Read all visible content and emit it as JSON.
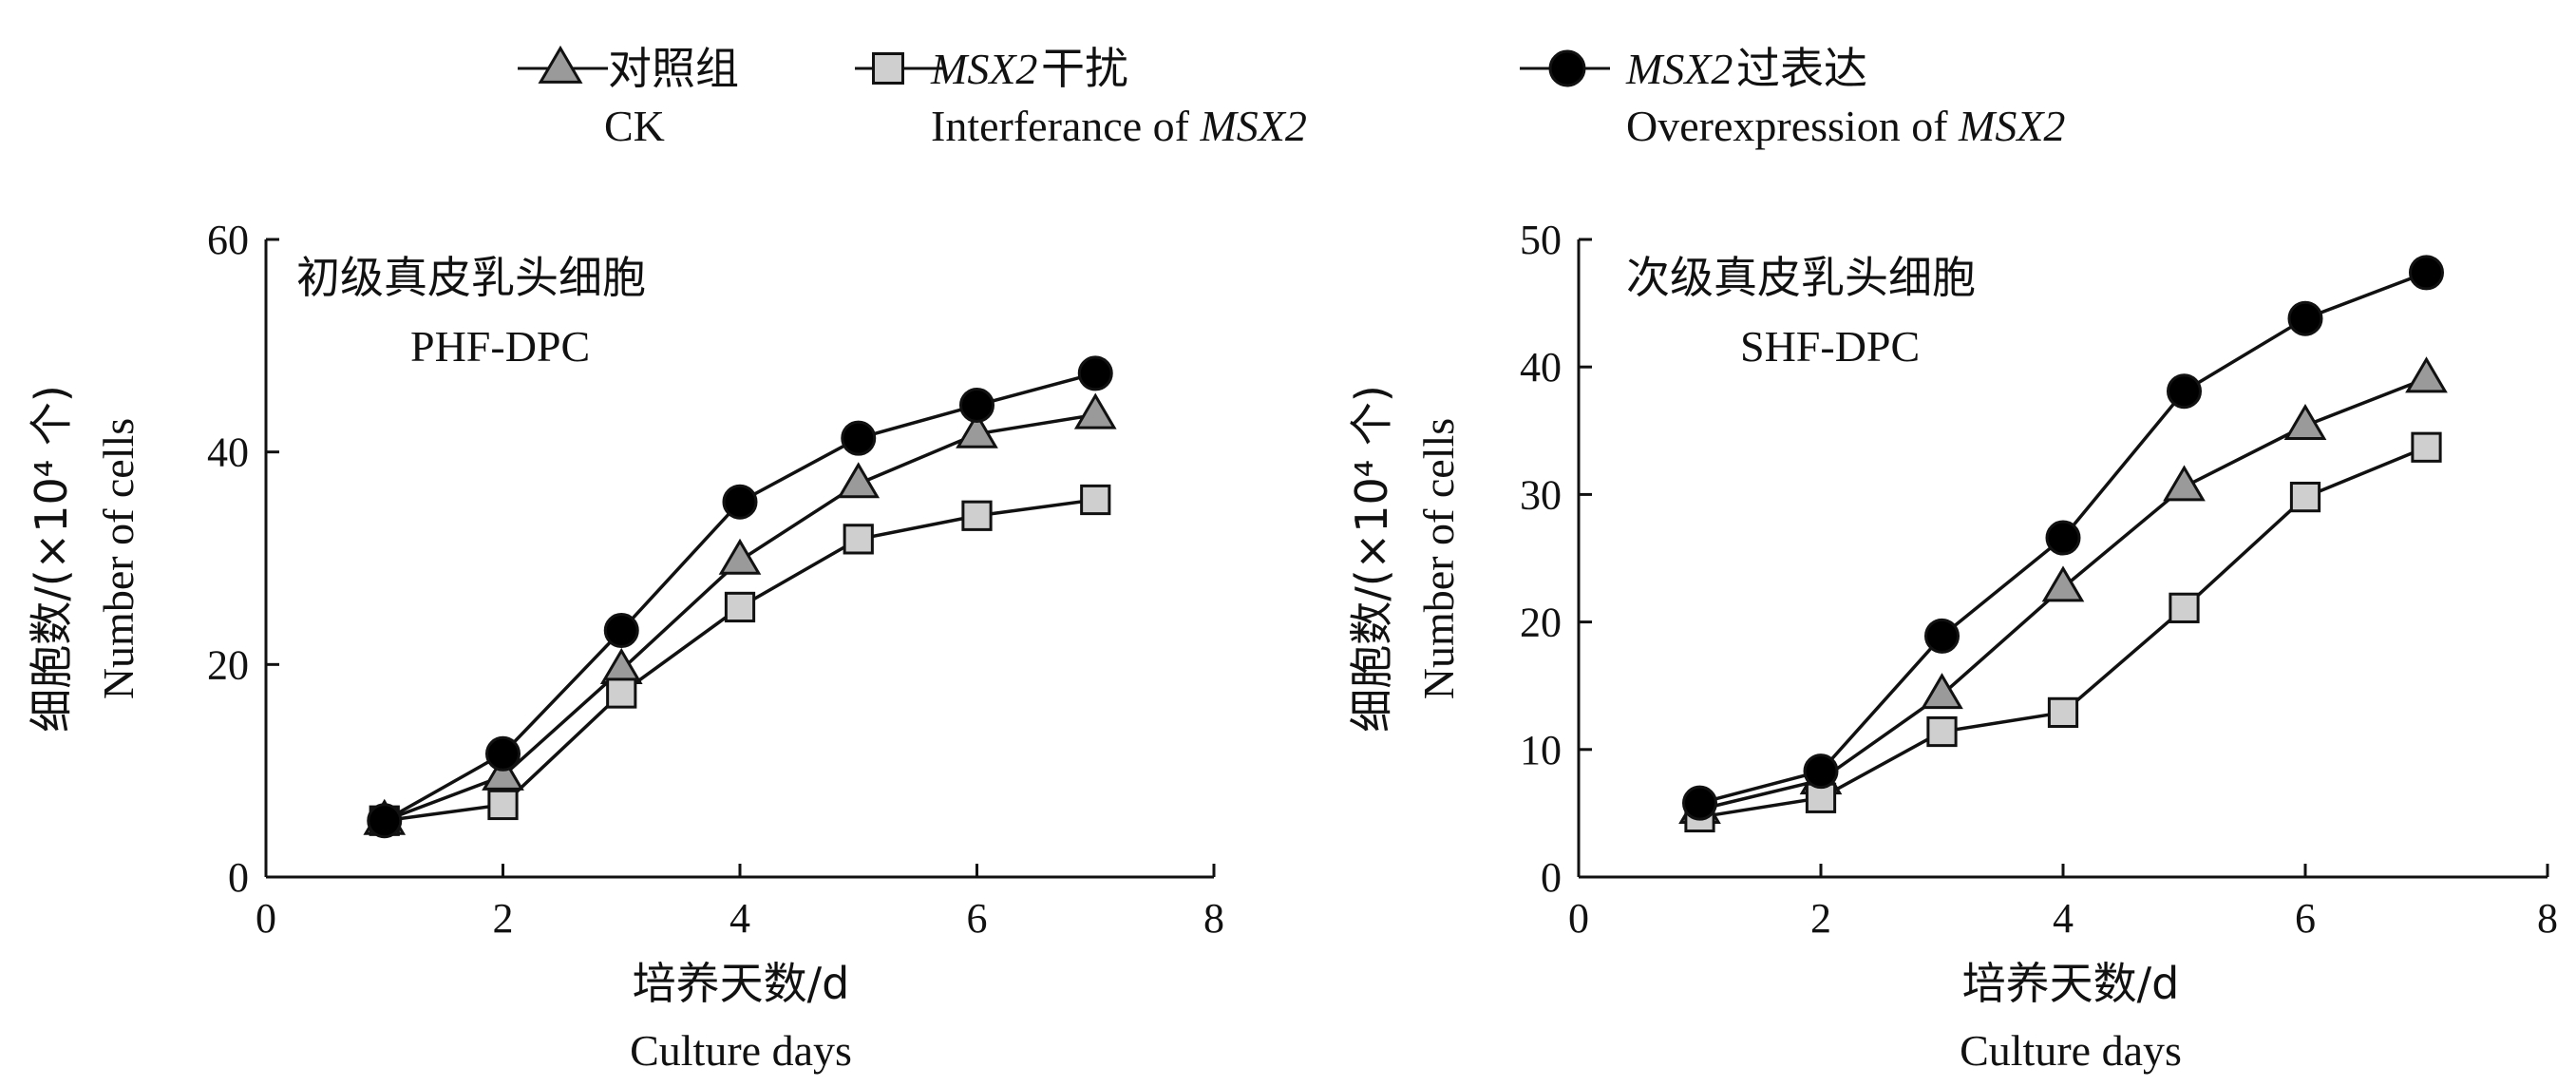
{
  "legend": {
    "items": [
      {
        "label_cn": "对照组",
        "label_en": "CK",
        "marker": "triangle",
        "gene": "",
        "fill": "#9a9a9a"
      },
      {
        "label_cn": "干扰",
        "label_en": "Interferance of ",
        "gene": "MSX2",
        "marker": "square",
        "fill": "#cfcfcf"
      },
      {
        "label_cn": "过表达",
        "label_en": "Overexpression of ",
        "gene": "MSX2",
        "marker": "circle",
        "fill": "#000000"
      }
    ]
  },
  "chart_data": [
    {
      "type": "line",
      "title_cn": "初级真皮乳头细胞",
      "title_en": "PHF-DPC",
      "xlabel_cn": "培养天数/d",
      "xlabel_en": "Culture days",
      "ylabel_cn": "细胞数/(×10⁴ 个)",
      "ylabel_en": "Number   of   cells",
      "xlim": [
        0,
        8
      ],
      "ylim": [
        0,
        60
      ],
      "xticks": [
        0,
        2,
        4,
        6,
        8
      ],
      "yticks": [
        0,
        20,
        40,
        60
      ],
      "x": [
        1,
        2,
        3,
        4,
        5,
        6,
        7
      ],
      "series": [
        {
          "name": "对照组 CK",
          "marker": "triangle",
          "values": [
            5.3,
            9.5,
            19.5,
            29.8,
            37.0,
            41.7,
            43.5
          ]
        },
        {
          "name": "MSX2干扰 Interferance of MSX2",
          "marker": "square",
          "values": [
            5.3,
            6.8,
            17.3,
            25.4,
            31.8,
            34.0,
            35.5
          ]
        },
        {
          "name": "MSX2过表达 Overexpression of MSX2",
          "marker": "circle",
          "values": [
            5.3,
            11.6,
            23.2,
            35.3,
            41.3,
            44.4,
            47.4
          ]
        }
      ]
    },
    {
      "type": "line",
      "title_cn": "次级真皮乳头细胞",
      "title_en": "SHF-DPC",
      "xlabel_cn": "培养天数/d",
      "xlabel_en": "Culture days",
      "ylabel_cn": "细胞数/(×10⁴ 个)",
      "ylabel_en": "Number   of   cells",
      "xlim": [
        0,
        8
      ],
      "ylim": [
        0,
        50
      ],
      "xticks": [
        0,
        2,
        4,
        6,
        8
      ],
      "yticks": [
        0,
        10,
        20,
        30,
        40,
        50
      ],
      "x": [
        1,
        2,
        3,
        4,
        5,
        6,
        7
      ],
      "series": [
        {
          "name": "对照组 CK",
          "marker": "triangle",
          "values": [
            5.3,
            7.6,
            14.3,
            22.7,
            30.6,
            35.4,
            39.1
          ]
        },
        {
          "name": "MSX2干扰 Interferance of MSX2",
          "marker": "square",
          "values": [
            4.7,
            6.2,
            11.4,
            12.9,
            21.1,
            29.8,
            33.7
          ]
        },
        {
          "name": "MSX2过表达 Overexpression of MSX2",
          "marker": "circle",
          "values": [
            5.8,
            8.3,
            18.9,
            26.6,
            38.1,
            43.8,
            47.4
          ]
        }
      ]
    }
  ]
}
